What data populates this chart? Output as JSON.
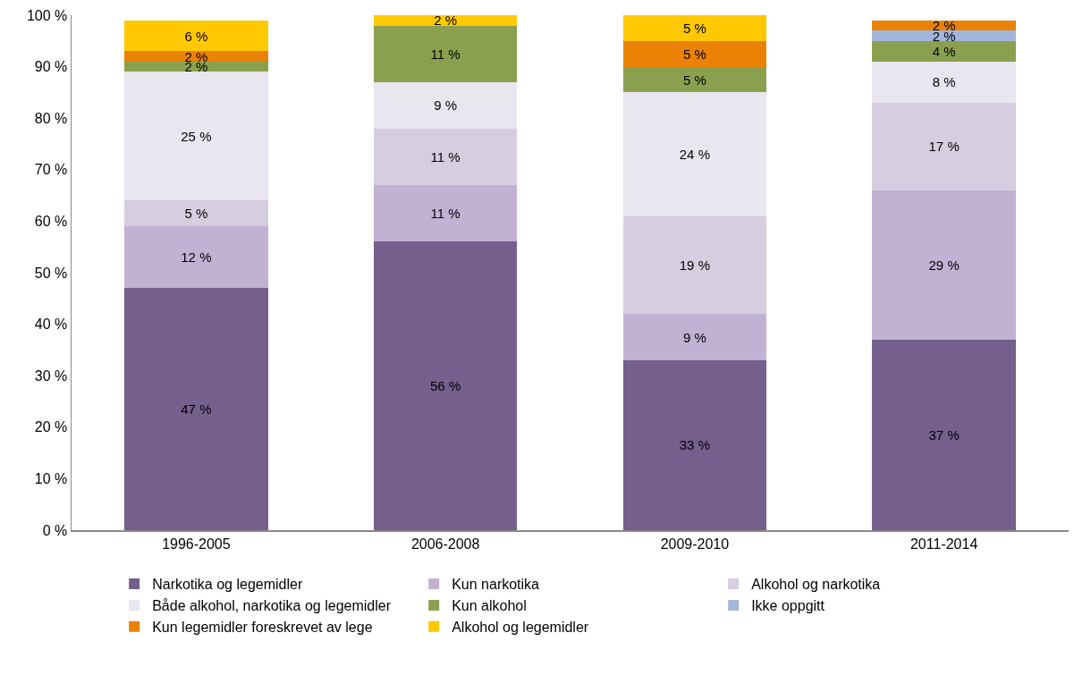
{
  "chart_data": {
    "type": "bar",
    "stacked": true,
    "categories": [
      "1996-2005",
      "2006-2008",
      "2009-2010",
      "2011-2014"
    ],
    "series": [
      {
        "name": "Narkotika og legemidler",
        "color": "#755f8c",
        "values": [
          47,
          56,
          33,
          37
        ],
        "value_labels": [
          "47 %",
          "56 %",
          "33 %",
          "37 %"
        ]
      },
      {
        "name": "Kun narkotika",
        "color": "#c1b2d4",
        "values": [
          12,
          11,
          9,
          29
        ],
        "value_labels": [
          "12 %",
          "11 %",
          "9 %",
          "29 %"
        ]
      },
      {
        "name": "Alkohol og narkotika",
        "color": "#d7cde1",
        "values": [
          5,
          11,
          19,
          17
        ],
        "value_labels": [
          "5 %",
          "11 %",
          "19 %",
          "17 %"
        ]
      },
      {
        "name": "Både alkohol, narkotika og legemidler",
        "color": "#e9e6f0",
        "values": [
          25,
          9,
          24,
          8
        ],
        "value_labels": [
          "25 %",
          "9 %",
          "24 %",
          "8 %"
        ]
      },
      {
        "name": "Kun alkohol",
        "color": "#8aa04e",
        "values": [
          2,
          11,
          5,
          4
        ],
        "value_labels": [
          "2 %",
          "11 %",
          "5 %",
          "4 %"
        ]
      },
      {
        "name": "Ikke oppgitt",
        "color": "#a1b6da",
        "values": [
          null,
          null,
          null,
          2
        ],
        "value_labels": [
          null,
          null,
          null,
          "2 %"
        ]
      },
      {
        "name": "Kun legemidler foreskrevet av lege",
        "color": "#ea8205",
        "values": [
          2,
          null,
          5,
          2
        ],
        "value_labels": [
          "2 %",
          null,
          "5 %",
          "2 %"
        ]
      },
      {
        "name": "Alkohol og legemidler",
        "color": "#ffc800",
        "values": [
          6,
          2,
          5,
          null
        ],
        "value_labels": [
          "6 %",
          "2 %",
          "5 %",
          null
        ]
      }
    ],
    "ylim": [
      0,
      100
    ],
    "yticks": [
      {
        "value": 0,
        "label": "0 %"
      },
      {
        "value": 10,
        "label": "10 %"
      },
      {
        "value": 20,
        "label": "20 %"
      },
      {
        "value": 30,
        "label": "30 %"
      },
      {
        "value": 40,
        "label": "40 %"
      },
      {
        "value": 50,
        "label": "50 %"
      },
      {
        "value": 60,
        "label": "60 %"
      },
      {
        "value": 70,
        "label": "70 %"
      },
      {
        "value": 80,
        "label": "80 %"
      },
      {
        "value": 90,
        "label": "90 %"
      },
      {
        "value": 100,
        "label": "100 %"
      }
    ],
    "grid": false,
    "legend": "bottom"
  }
}
